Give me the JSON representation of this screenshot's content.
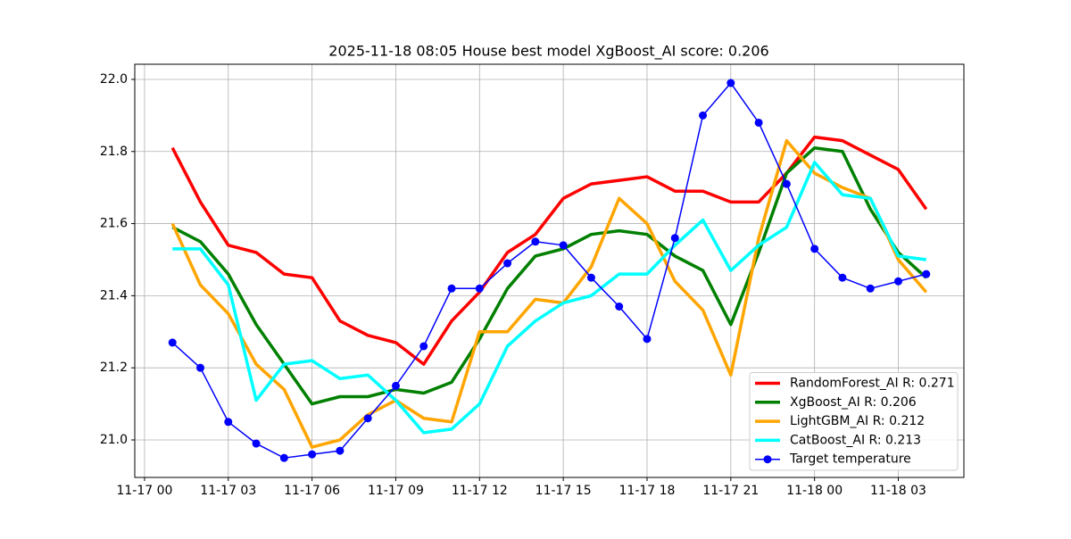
{
  "chart_data": {
    "type": "line",
    "title": "2025-11-18 08:05 House best model XgBoost_AI score: 0.206",
    "x": [
      "11-17 01",
      "11-17 02",
      "11-17 03",
      "11-17 04",
      "11-17 05",
      "11-17 06",
      "11-17 07",
      "11-17 08",
      "11-17 09",
      "11-17 10",
      "11-17 11",
      "11-17 12",
      "11-17 13",
      "11-17 14",
      "11-17 15",
      "11-17 16",
      "11-17 17",
      "11-17 18",
      "11-17 19",
      "11-17 20",
      "11-17 21",
      "11-17 22",
      "11-17 23",
      "11-18 00",
      "11-18 01",
      "11-18 02",
      "11-18 03",
      "11-18 04"
    ],
    "xticks": [
      "11-17 00",
      "11-17 03",
      "11-17 06",
      "11-17 09",
      "11-17 12",
      "11-17 15",
      "11-17 18",
      "11-17 21",
      "11-18 00",
      "11-18 03"
    ],
    "ylim": [
      20.896,
      22.042
    ],
    "yticks": [
      {
        "value": 21,
        "label": "21.0"
      },
      21.2,
      21.4,
      21.6,
      21.8,
      {
        "value": 22,
        "label": "22.0"
      }
    ],
    "grid": true,
    "legend": "lower right",
    "series": [
      {
        "name": "RandomForest_AI R: 0.271",
        "color": "#ff0000",
        "values": [
          21.81,
          21.66,
          21.54,
          21.52,
          21.46,
          21.45,
          21.33,
          21.29,
          21.27,
          21.21,
          21.33,
          21.41,
          21.52,
          21.57,
          21.67,
          21.71,
          21.72,
          21.73,
          21.69,
          21.69,
          21.66,
          21.66,
          21.74,
          21.84,
          21.83,
          21.79,
          21.75,
          21.64
        ]
      },
      {
        "name": "XgBoost_AI R: 0.206",
        "color": "#008000",
        "values": [
          21.59,
          21.55,
          21.46,
          21.32,
          21.21,
          21.1,
          21.12,
          21.12,
          21.14,
          21.13,
          21.16,
          21.28,
          21.42,
          21.51,
          21.53,
          21.57,
          21.58,
          21.57,
          21.51,
          21.47,
          21.32,
          21.52,
          21.74,
          21.81,
          21.8,
          21.64,
          21.52,
          21.45
        ]
      },
      {
        "name": "LightGBM_AI R: 0.212",
        "color": "#ffa500",
        "values": [
          21.6,
          21.43,
          21.35,
          21.21,
          21.14,
          20.98,
          21.0,
          21.07,
          21.11,
          21.06,
          21.05,
          21.3,
          21.3,
          21.39,
          21.38,
          21.48,
          21.67,
          21.6,
          21.44,
          21.36,
          21.18,
          21.56,
          21.83,
          21.74,
          21.7,
          21.67,
          21.5,
          21.41
        ]
      },
      {
        "name": "CatBoost_AI R: 0.213",
        "color": "#00ffff",
        "values": [
          21.53,
          21.53,
          21.43,
          21.11,
          21.21,
          21.22,
          21.17,
          21.18,
          21.11,
          21.02,
          21.03,
          21.1,
          21.26,
          21.33,
          21.38,
          21.4,
          21.46,
          21.46,
          21.54,
          21.61,
          21.47,
          21.54,
          21.59,
          21.77,
          21.68,
          21.67,
          21.51,
          21.5
        ]
      },
      {
        "name": "Target temperature",
        "color": "#0000ff",
        "marker": "o",
        "values": [
          21.27,
          21.2,
          21.05,
          20.99,
          20.95,
          20.96,
          20.97,
          21.06,
          21.15,
          21.26,
          21.42,
          21.42,
          21.49,
          21.55,
          21.54,
          21.45,
          21.37,
          21.28,
          21.56,
          21.9,
          21.99,
          21.88,
          21.71,
          21.53,
          21.45,
          21.42,
          21.44,
          21.46
        ]
      }
    ]
  }
}
